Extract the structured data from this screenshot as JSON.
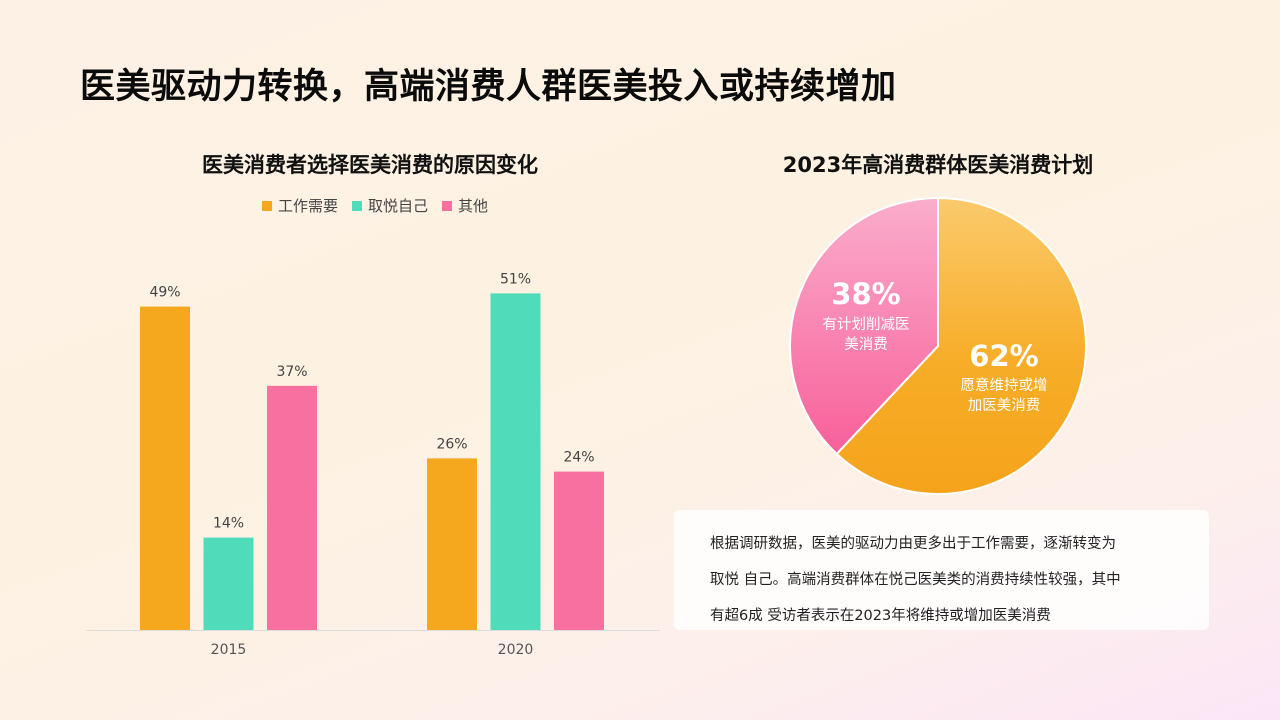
{
  "page": {
    "title": "医美驱动力转换，高端消费人群医美投入或持续增加"
  },
  "bar_chart": {
    "title": "医美消费者选择医美消费的原因变化"
  },
  "pie_chart": {
    "title": "2023年高消费群体医美消费计划"
  },
  "note": {
    "lines": [
      "根据调研数据，医美的驱动力由更多出于工作需要，逐渐转变为",
      "取悦 自己。高端消费群体在悦己医美类的消费持续性较强，其中",
      "有超6成 受访者表示在2023年将维持或增加医美消费"
    ]
  },
  "colors": {
    "work": "#f5a81d",
    "self": "#4edcbb",
    "other": "#f8709f"
  },
  "chart_data": [
    {
      "type": "bar",
      "title": "医美消费者选择医美消费的原因变化",
      "categories": [
        "2015",
        "2020"
      ],
      "series": [
        {
          "name": "工作需要",
          "values": [
            49,
            26
          ],
          "labels": [
            "49%",
            "26%"
          ]
        },
        {
          "name": "取悦自己",
          "values": [
            14,
            51
          ],
          "labels": [
            "14%",
            "51%"
          ]
        },
        {
          "name": "其他",
          "values": [
            37,
            24
          ],
          "labels": [
            "37%",
            "24%"
          ]
        }
      ],
      "ylim": [
        0,
        60
      ],
      "grid": false,
      "legend": "top-center"
    },
    {
      "type": "pie",
      "title": "2023年高消费群体医美消费计划",
      "slices": [
        {
          "value": 62,
          "percent": "62%",
          "label1": "愿意维持或增",
          "label2": "加医美消费"
        },
        {
          "value": 38,
          "percent": "38%",
          "label1": "有计划削减医",
          "label2": "美消费"
        }
      ]
    }
  ]
}
